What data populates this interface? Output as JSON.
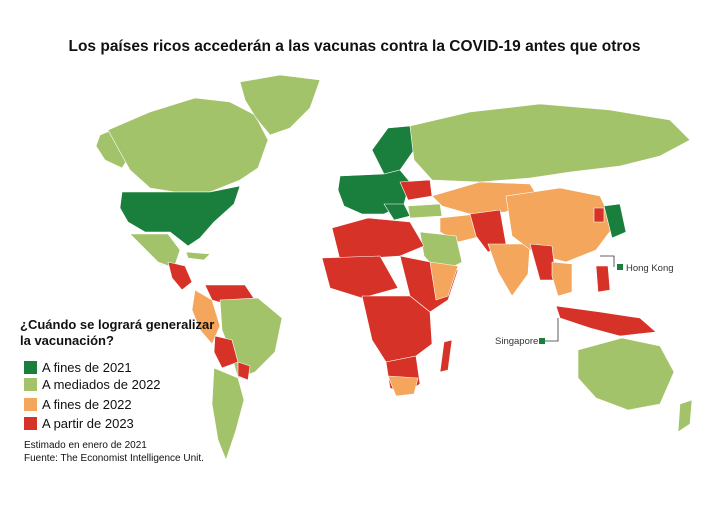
{
  "title": "Los países ricos accederán a las vacunas contra la COVID-19 antes que otros",
  "legend": {
    "question": "¿Cuándo  se logrará generalizar la vacunación?",
    "items": [
      {
        "label": "A fines de 2021",
        "color": "#1a7f3c"
      },
      {
        "label": "A mediados de 2022",
        "color": "#a3c36a"
      },
      {
        "label": "A fines de 2022",
        "color": "#f3a65c"
      },
      {
        "label": "A partir de 2023",
        "color": "#d73227"
      }
    ]
  },
  "notes": {
    "estimate": "Estimado en enero de 2021",
    "source": "Fuente: The Economist Intelligence Unit."
  },
  "annotations": {
    "hong_kong": "Hong Kong",
    "singapore": "Singapore"
  },
  "colors": {
    "late_2021": "#1a7f3c",
    "mid_2022": "#a3c36a",
    "late_2022": "#f3a65c",
    "from_2023": "#d73227",
    "border": "#ffffff"
  }
}
